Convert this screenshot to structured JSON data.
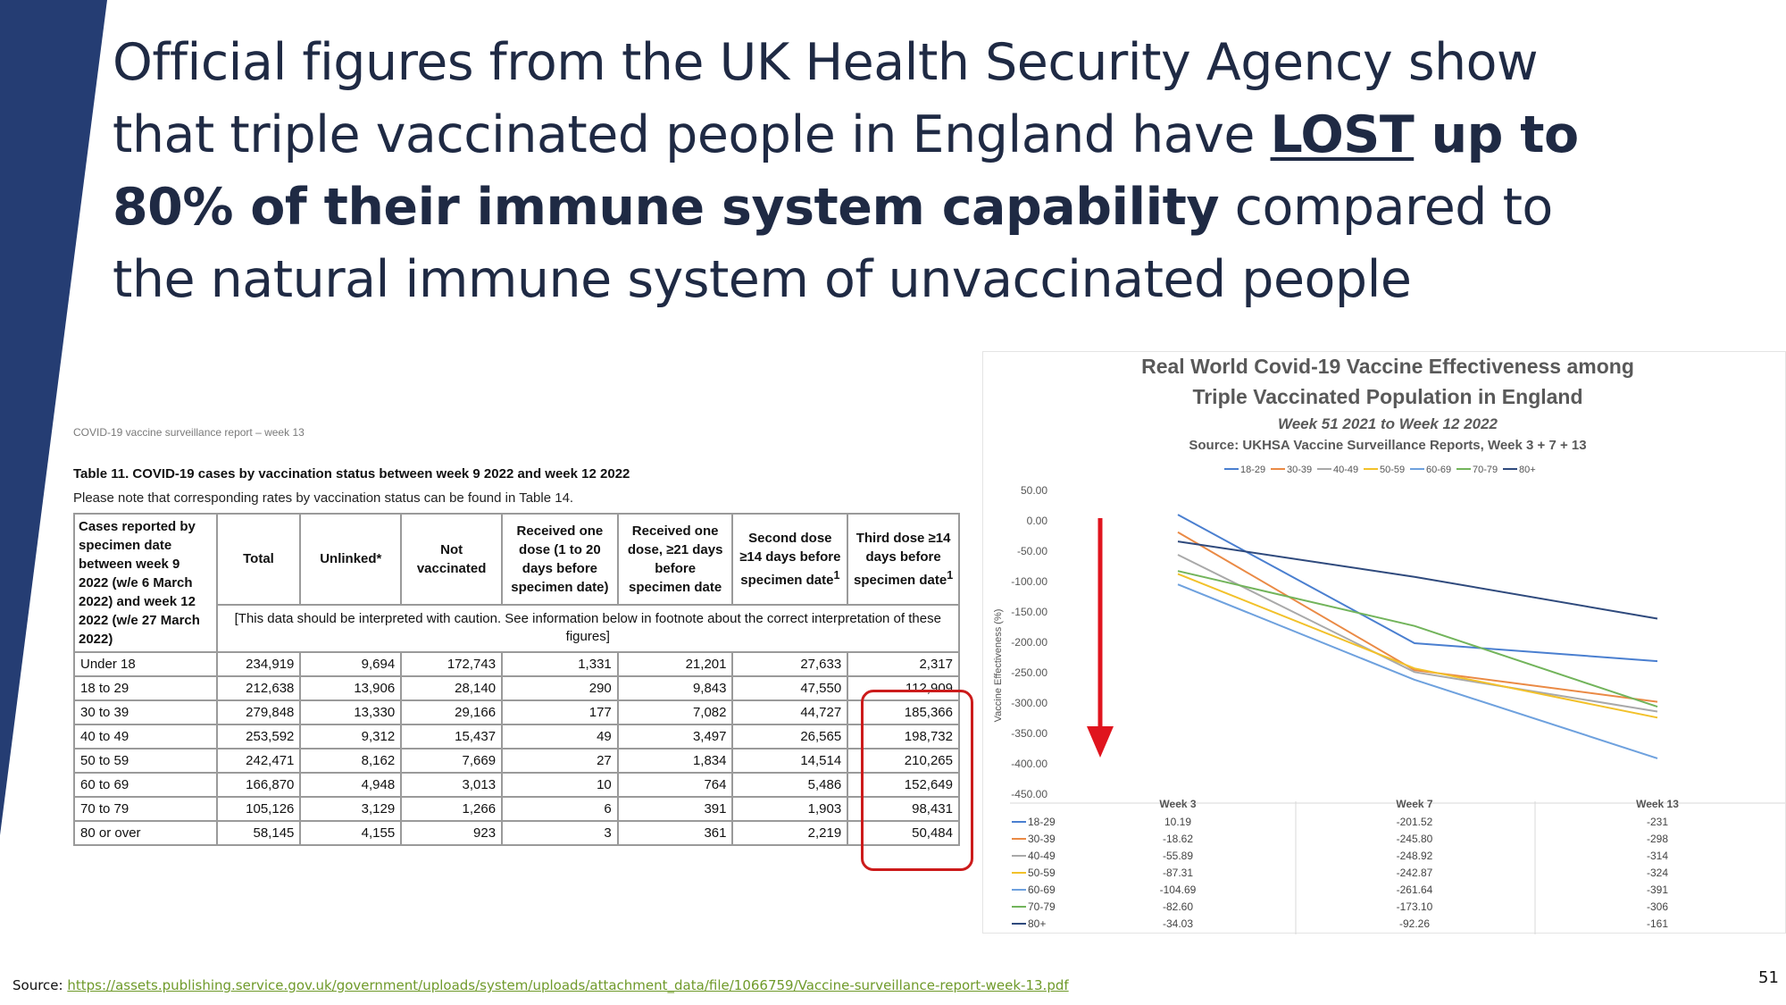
{
  "theme": {
    "band_color": "#253d73",
    "title_color": "#1f2a44",
    "red": "#e0141e",
    "link_color": "#6f9a2a"
  },
  "headline": {
    "p1": "Official figures from the UK Health Security Agency show that triple vaccinated people in England have ",
    "lost": "LOST",
    "p2": " up to 80% of their immune system capability",
    "p3": " compared to the natural immune system of unvaccinated people"
  },
  "report": {
    "caption": "COVID-19 vaccine surveillance report – week 13",
    "table_title": "Table 11. COVID-19 cases by vaccination status between week 9 2022 and week 12 2022",
    "note": "Please note that corresponding rates by vaccination status can be found in Table 14.",
    "headers": {
      "age": "Cases reported by specimen date between week 9 2022 (w/e 6 March 2022) and week 12 2022 (w/e 27 March 2022)",
      "total": "Total",
      "unlinked": "Unlinked*",
      "not_vaccinated": "Not vaccinated",
      "one_dose_1_20": "Received one dose (1 to 20 days before specimen date)",
      "one_dose_21": "Received one dose, ≥21 days before specimen date",
      "second_dose": "Second dose ≥14 days before specimen date",
      "third_dose": "Third dose ≥14 days before specimen date",
      "footnote_mark": "1"
    },
    "caution": "[This data should be interpreted with caution. See information below in footnote about the correct interpretation of these figures]",
    "rows": [
      [
        "Under 18",
        "234,919",
        "9,694",
        "172,743",
        "1,331",
        "21,201",
        "27,633",
        "2,317"
      ],
      [
        "18 to 29",
        "212,638",
        "13,906",
        "28,140",
        "290",
        "9,843",
        "47,550",
        "112,909"
      ],
      [
        "30 to 39",
        "279,848",
        "13,330",
        "29,166",
        "177",
        "7,082",
        "44,727",
        "185,366"
      ],
      [
        "40 to 49",
        "253,592",
        "9,312",
        "15,437",
        "49",
        "3,497",
        "26,565",
        "198,732"
      ],
      [
        "50 to 59",
        "242,471",
        "8,162",
        "7,669",
        "27",
        "1,834",
        "14,514",
        "210,265"
      ],
      [
        "60 to 69",
        "166,870",
        "4,948",
        "3,013",
        "10",
        "764",
        "5,486",
        "152,649"
      ],
      [
        "70 to 79",
        "105,126",
        "3,129",
        "1,266",
        "6",
        "391",
        "1,903",
        "98,431"
      ],
      [
        "80 or over",
        "58,145",
        "4,155",
        "923",
        "3",
        "361",
        "2,219",
        "50,484"
      ]
    ]
  },
  "chart_data": {
    "type": "line",
    "title": "Real World Covid-19 Vaccine Effectiveness among Triple Vaccinated Population in England",
    "title_line1": "Real World Covid-19 Vaccine Effectiveness among",
    "title_line2": "Triple Vaccinated Population in England",
    "subtitle": "Week 51 2021 to Week 12 2022",
    "source": "Source: UKHSA Vaccine Surveillance Reports, Week 3 + 7 + 13",
    "xlabel": "",
    "ylabel": "Vaccine Effectiveness (%)",
    "categories": [
      "Week 3",
      "Week 7",
      "Week 13"
    ],
    "ylim": [
      -450,
      50
    ],
    "yticks": [
      "50.00",
      "0.00",
      "-50.00",
      "-100.00",
      "-150.00",
      "-200.00",
      "-250.00",
      "-300.00",
      "-350.00",
      "-400.00",
      "-450.00"
    ],
    "legend_position": "top",
    "series": [
      {
        "name": "18-29",
        "color": "#4a7fd0",
        "values": [
          10.19,
          -201.52,
          -231
        ],
        "labels": [
          "10.19",
          "-201.52",
          "-231"
        ]
      },
      {
        "name": "30-39",
        "color": "#ea8a45",
        "values": [
          -18.62,
          -245.8,
          -298
        ],
        "labels": [
          "-18.62",
          "-245.80",
          "-298"
        ]
      },
      {
        "name": "40-49",
        "color": "#a9a9a9",
        "values": [
          -55.89,
          -248.92,
          -314
        ],
        "labels": [
          "-55.89",
          "-248.92",
          "-314"
        ]
      },
      {
        "name": "50-59",
        "color": "#f2c12a",
        "values": [
          -87.31,
          -242.87,
          -324
        ],
        "labels": [
          "-87.31",
          "-242.87",
          "-324"
        ]
      },
      {
        "name": "60-69",
        "color": "#6ea1de",
        "values": [
          -104.69,
          -261.64,
          -391
        ],
        "labels": [
          "-104.69",
          "-261.64",
          "-391"
        ]
      },
      {
        "name": "70-79",
        "color": "#72b45b",
        "values": [
          -82.6,
          -173.1,
          -306
        ],
        "labels": [
          "-82.60",
          "-173.10",
          "-306"
        ]
      },
      {
        "name": "80+",
        "color": "#2f4a7d",
        "values": [
          -34.03,
          -92.26,
          -161
        ],
        "labels": [
          "-34.03",
          "-92.26",
          "-161"
        ]
      }
    ]
  },
  "footer": {
    "source_label": "Source: ",
    "source_url": "https://assets.publishing.service.gov.uk/government/uploads/system/uploads/attachment_data/file/1066759/Vaccine-surveillance-report-week-13.pdf",
    "page_number": "51"
  }
}
